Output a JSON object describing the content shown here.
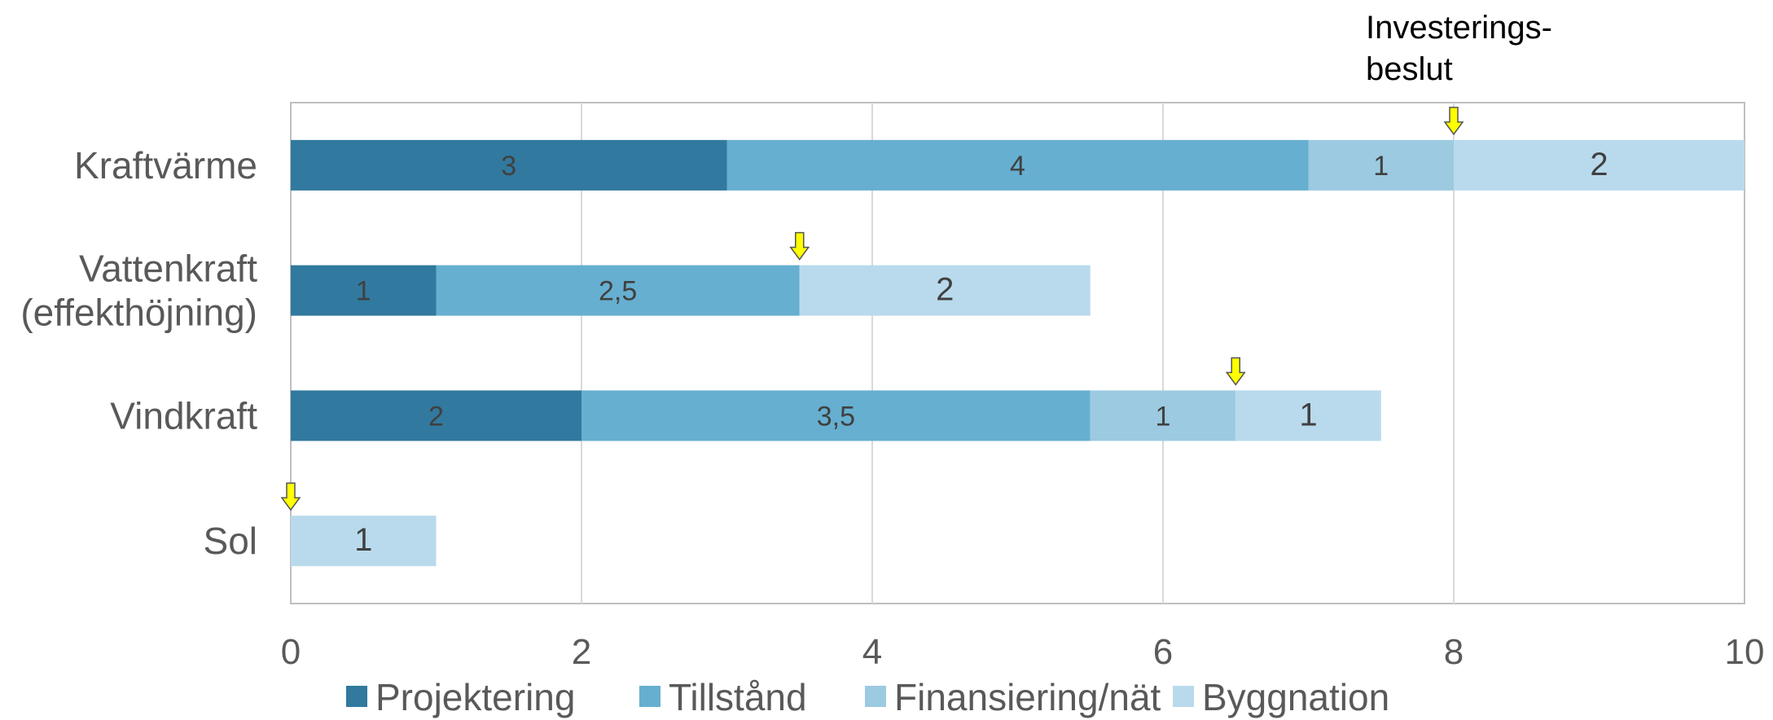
{
  "chart_data": {
    "type": "bar",
    "orientation": "horizontal",
    "stacked": true,
    "categories": [
      "Kraftvärme",
      "Vattenkraft (effekthöjning)",
      "Vindkraft",
      "Sol"
    ],
    "category_lines": [
      [
        "Kraftvärme"
      ],
      [
        "Vattenkraft",
        "(effekthöjning)"
      ],
      [
        "Vindkraft"
      ],
      [
        "Sol"
      ]
    ],
    "series": [
      {
        "name": "Projektering",
        "color": "#31799f",
        "values": [
          3,
          1,
          2,
          0
        ],
        "labels": [
          "3",
          "1",
          "2",
          ""
        ]
      },
      {
        "name": "Tillstånd",
        "color": "#66afd0",
        "values": [
          4,
          2.5,
          3.5,
          0
        ],
        "labels": [
          "4",
          "2,5",
          "3,5",
          ""
        ]
      },
      {
        "name": "Finansiering/nät",
        "color": "#9ccae1",
        "values": [
          1,
          0,
          1,
          0
        ],
        "labels": [
          "1",
          "",
          "1",
          ""
        ]
      },
      {
        "name": "Byggnation",
        "color": "#b9daec",
        "values": [
          2,
          2,
          1,
          1
        ],
        "labels": [
          "2",
          "2",
          "1",
          "1"
        ]
      }
    ],
    "xlim": [
      0,
      10
    ],
    "xticks": [
      "0",
      "2",
      "4",
      "6",
      "8",
      "10"
    ],
    "grid": "vertical",
    "legend_position": "bottom",
    "annotation": {
      "text_lines": [
        "Investerings-",
        "beslut"
      ],
      "marker": "yellow-down-arrow",
      "marker_color": "#ffff00"
    },
    "decision_points": [
      8,
      3.5,
      6.5,
      0
    ]
  }
}
